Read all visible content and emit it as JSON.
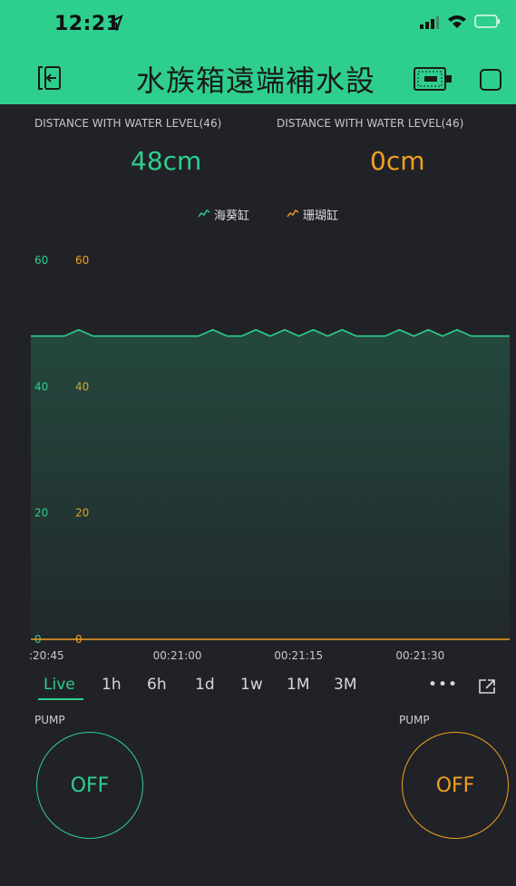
{
  "status_bar": {
    "time": "12:21"
  },
  "app_bar": {
    "title": "水族箱遠端補水設"
  },
  "widgets": [
    {
      "label": "DISTANCE WITH WATER LEVEL(46)",
      "value": "48cm",
      "color": "#2ecf8e"
    },
    {
      "label": "DISTANCE WITH WATER LEVEL(46)",
      "value": "0cm",
      "color": "#f0a020"
    }
  ],
  "legend": [
    {
      "name": "海葵缸",
      "color": "#2ecf8e"
    },
    {
      "name": "珊瑚缸",
      "color": "#f0a020"
    }
  ],
  "chart_data": {
    "type": "area",
    "x_tick_labels": [
      ":20:45",
      "00:21:00",
      "00:21:15",
      "00:21:30"
    ],
    "y_ticks_left": [
      "60",
      "40",
      "20",
      "0"
    ],
    "y_ticks_right": [
      "60",
      "40",
      "20",
      "0"
    ],
    "ylim": [
      0,
      60
    ],
    "grid": false,
    "series": [
      {
        "name": "海葵缸",
        "color": "#2ecf8e",
        "x": [
          0,
          0.07,
          0.1,
          0.13,
          0.35,
          0.38,
          0.41,
          0.44,
          0.47,
          0.5,
          0.53,
          0.56,
          0.59,
          0.62,
          0.65,
          0.68,
          0.71,
          0.74,
          0.77,
          0.8,
          0.83,
          0.86,
          0.89,
          0.92,
          0.95,
          1.0
        ],
        "values": [
          48,
          48,
          49,
          48,
          48,
          49,
          48,
          48,
          49,
          48,
          49,
          48,
          49,
          48,
          49,
          48,
          48,
          48,
          49,
          48,
          49,
          48,
          49,
          48,
          48,
          48
        ]
      },
      {
        "name": "珊瑚缸",
        "color": "#f0a020",
        "x": [
          0,
          1.0
        ],
        "values": [
          0,
          0
        ]
      }
    ]
  },
  "time_ranges": [
    "Live",
    "1h",
    "6h",
    "1d",
    "1w",
    "1M",
    "3M"
  ],
  "more_label": "•••",
  "pumps": [
    {
      "label": "PUMP",
      "state": "OFF",
      "color": "#2ecf8e"
    },
    {
      "label": "PUMP",
      "state": "OFF",
      "color": "#f0a020"
    }
  ]
}
